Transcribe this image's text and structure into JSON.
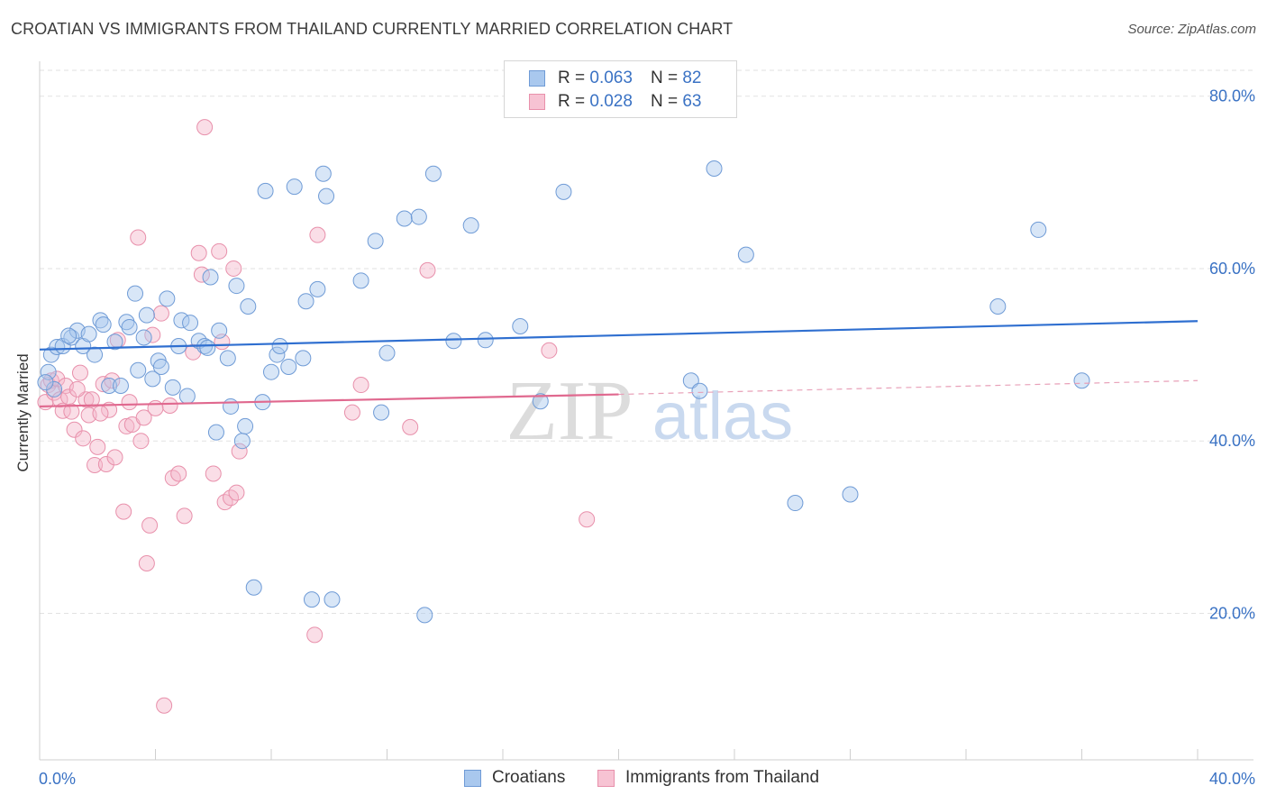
{
  "title": "CROATIAN VS IMMIGRANTS FROM THAILAND CURRENTLY MARRIED CORRELATION CHART",
  "source": "Source: ZipAtlas.com",
  "colors": {
    "blue": "#3a72c4",
    "blue_fill": "#a9c8ee",
    "pink": "#e0698f",
    "pink_fill": "#f5b6c9",
    "grid": "#e2e2e2"
  },
  "legend": {
    "rows": [
      {
        "r_label": "R =",
        "r_value": "0.063",
        "n_label": "N =",
        "n_value": "82"
      },
      {
        "r_label": "R =",
        "r_value": "0.028",
        "n_label": "N =",
        "n_value": "63"
      }
    ]
  },
  "bottom_legend": [
    "Croatians",
    "Immigrants from Thailand"
  ],
  "watermark": {
    "zip": "ZIP",
    "atlas": "atlas"
  },
  "chart_data": {
    "type": "scatter",
    "title": "CROATIAN VS IMMIGRANTS FROM THAILAND CURRENTLY MARRIED CORRELATION CHART",
    "xlabel": "",
    "ylabel": "Currently Married",
    "xlim": [
      0,
      40
    ],
    "ylim": [
      3,
      83
    ],
    "x_tick_labels": [
      "0.0%",
      "40.0%"
    ],
    "y_ticks": [
      20,
      40,
      60,
      80
    ],
    "y_tick_labels": [
      "20.0%",
      "40.0%",
      "60.0%",
      "80.0%"
    ],
    "grid": true,
    "legend_position": "top-center",
    "series": [
      {
        "name": "Croatians",
        "color": "#3a72c4",
        "trend": {
          "x": [
            0,
            40
          ],
          "y": [
            50.6,
            53.9
          ]
        },
        "points": [
          [
            0.3,
            48.0
          ],
          [
            0.4,
            50.0
          ],
          [
            0.5,
            46.0
          ],
          [
            0.6,
            50.9
          ],
          [
            0.8,
            51.0
          ],
          [
            1.1,
            52.0
          ],
          [
            1.3,
            52.8
          ],
          [
            1.5,
            51.0
          ],
          [
            1.7,
            52.4
          ],
          [
            1.9,
            50.0
          ],
          [
            2.1,
            54.0
          ],
          [
            2.2,
            53.5
          ],
          [
            2.4,
            46.4
          ],
          [
            2.6,
            51.5
          ],
          [
            2.8,
            46.4
          ],
          [
            3.0,
            53.8
          ],
          [
            3.1,
            53.2
          ],
          [
            3.3,
            57.1
          ],
          [
            3.4,
            48.2
          ],
          [
            3.6,
            52.0
          ],
          [
            3.7,
            54.6
          ],
          [
            3.9,
            47.2
          ],
          [
            4.1,
            49.3
          ],
          [
            4.2,
            48.6
          ],
          [
            4.4,
            56.5
          ],
          [
            4.6,
            46.2
          ],
          [
            4.8,
            51.0
          ],
          [
            4.9,
            54.0
          ],
          [
            5.1,
            45.2
          ],
          [
            5.2,
            53.7
          ],
          [
            5.5,
            51.6
          ],
          [
            5.7,
            51.0
          ],
          [
            5.8,
            50.8
          ],
          [
            5.9,
            59.0
          ],
          [
            6.1,
            41.0
          ],
          [
            6.2,
            52.8
          ],
          [
            6.5,
            49.6
          ],
          [
            6.6,
            44.0
          ],
          [
            6.8,
            58.0
          ],
          [
            7.0,
            40.0
          ],
          [
            7.1,
            41.7
          ],
          [
            7.2,
            55.6
          ],
          [
            7.4,
            23.0
          ],
          [
            7.7,
            44.5
          ],
          [
            7.8,
            69.0
          ],
          [
            8.0,
            48.0
          ],
          [
            8.2,
            50.0
          ],
          [
            8.3,
            51.0
          ],
          [
            8.6,
            48.6
          ],
          [
            8.8,
            69.5
          ],
          [
            9.1,
            49.6
          ],
          [
            9.2,
            56.2
          ],
          [
            9.4,
            21.6
          ],
          [
            9.6,
            57.6
          ],
          [
            9.8,
            71.0
          ],
          [
            9.9,
            68.4
          ],
          [
            10.1,
            21.6
          ],
          [
            11.1,
            58.6
          ],
          [
            11.6,
            63.2
          ],
          [
            11.8,
            43.3
          ],
          [
            12.0,
            50.2
          ],
          [
            12.6,
            65.8
          ],
          [
            13.1,
            66.0
          ],
          [
            13.3,
            19.8
          ],
          [
            13.6,
            71.0
          ],
          [
            14.3,
            51.6
          ],
          [
            14.9,
            65.0
          ],
          [
            15.4,
            51.7
          ],
          [
            16.6,
            53.3
          ],
          [
            17.3,
            44.6
          ],
          [
            18.1,
            68.9
          ],
          [
            22.5,
            47.0
          ],
          [
            22.8,
            45.8
          ],
          [
            23.3,
            71.6
          ],
          [
            24.4,
            61.6
          ],
          [
            26.1,
            32.8
          ],
          [
            28.0,
            33.8
          ],
          [
            33.1,
            55.6
          ],
          [
            34.5,
            64.5
          ],
          [
            36.0,
            47.0
          ],
          [
            0.2,
            46.8
          ],
          [
            1.0,
            52.2
          ]
        ]
      },
      {
        "name": "Immigrants from Thailand",
        "color": "#e0698f",
        "trend": {
          "x": [
            0,
            20
          ],
          "y": [
            44.0,
            45.4
          ]
        },
        "trend_dashed": {
          "x": [
            20,
            40
          ],
          "y": [
            45.4,
            47.0
          ]
        },
        "points": [
          [
            0.2,
            44.5
          ],
          [
            0.3,
            46.5
          ],
          [
            0.4,
            47.0
          ],
          [
            0.5,
            45.6
          ],
          [
            0.6,
            47.2
          ],
          [
            0.7,
            44.8
          ],
          [
            0.8,
            43.5
          ],
          [
            0.9,
            46.4
          ],
          [
            1.0,
            45.1
          ],
          [
            1.1,
            43.4
          ],
          [
            1.2,
            41.3
          ],
          [
            1.4,
            47.9
          ],
          [
            1.5,
            40.3
          ],
          [
            1.6,
            44.8
          ],
          [
            1.7,
            43.0
          ],
          [
            1.8,
            44.8
          ],
          [
            1.9,
            37.2
          ],
          [
            2.0,
            39.3
          ],
          [
            2.2,
            46.6
          ],
          [
            2.3,
            37.3
          ],
          [
            2.4,
            43.6
          ],
          [
            2.6,
            38.1
          ],
          [
            2.7,
            51.7
          ],
          [
            2.9,
            31.8
          ],
          [
            3.0,
            41.7
          ],
          [
            3.1,
            44.5
          ],
          [
            3.2,
            41.9
          ],
          [
            3.4,
            63.6
          ],
          [
            3.5,
            40.0
          ],
          [
            3.6,
            42.7
          ],
          [
            3.7,
            25.8
          ],
          [
            3.8,
            30.2
          ],
          [
            3.9,
            52.3
          ],
          [
            4.2,
            54.8
          ],
          [
            4.3,
            9.3
          ],
          [
            4.5,
            44.1
          ],
          [
            4.6,
            35.7
          ],
          [
            4.8,
            36.2
          ],
          [
            5.0,
            31.3
          ],
          [
            5.3,
            50.3
          ],
          [
            5.5,
            61.8
          ],
          [
            5.6,
            59.3
          ],
          [
            5.7,
            76.4
          ],
          [
            6.0,
            36.2
          ],
          [
            6.2,
            62.0
          ],
          [
            6.3,
            51.5
          ],
          [
            6.4,
            32.9
          ],
          [
            6.6,
            33.4
          ],
          [
            6.7,
            60.0
          ],
          [
            6.9,
            38.8
          ],
          [
            6.8,
            34.0
          ],
          [
            9.5,
            17.5
          ],
          [
            9.6,
            63.9
          ],
          [
            10.8,
            43.3
          ],
          [
            11.1,
            46.5
          ],
          [
            12.8,
            41.6
          ],
          [
            13.4,
            59.8
          ],
          [
            17.6,
            50.5
          ],
          [
            18.9,
            30.9
          ],
          [
            2.5,
            47.0
          ],
          [
            1.3,
            46.0
          ],
          [
            4.0,
            43.8
          ],
          [
            2.1,
            43.2
          ]
        ]
      }
    ]
  }
}
